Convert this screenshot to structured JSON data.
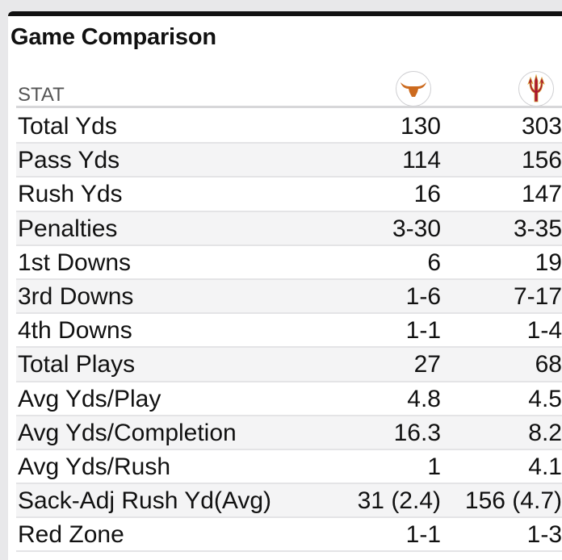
{
  "title": "Game Comparison",
  "header": {
    "stat_label": "STAT",
    "team_a_logo": "longhorn-icon",
    "team_b_logo": "pitchfork-icon",
    "team_a_color": "#cc6a1e",
    "team_b_color": "#a8142f"
  },
  "rows": [
    {
      "stat": "Total Yds",
      "a": "130",
      "b": "303"
    },
    {
      "stat": "Pass Yds",
      "a": "114",
      "b": "156"
    },
    {
      "stat": "Rush Yds",
      "a": "16",
      "b": "147"
    },
    {
      "stat": "Penalties",
      "a": "3-30",
      "b": "3-35"
    },
    {
      "stat": "1st Downs",
      "a": "6",
      "b": "19"
    },
    {
      "stat": "3rd Downs",
      "a": "1-6",
      "b": "7-17"
    },
    {
      "stat": "4th Downs",
      "a": "1-1",
      "b": "1-4"
    },
    {
      "stat": "Total Plays",
      "a": "27",
      "b": "68"
    },
    {
      "stat": "Avg Yds/Play",
      "a": "4.8",
      "b": "4.5"
    },
    {
      "stat": "Avg Yds/Completion",
      "a": "16.3",
      "b": "8.2"
    },
    {
      "stat": "Avg Yds/Rush",
      "a": "1",
      "b": "4.1"
    },
    {
      "stat": "Sack-Adj Rush Yd(Avg)",
      "a": "31 (2.4)",
      "b": "156 (4.7)"
    },
    {
      "stat": "Red Zone",
      "a": "1-1",
      "b": "1-3"
    }
  ]
}
